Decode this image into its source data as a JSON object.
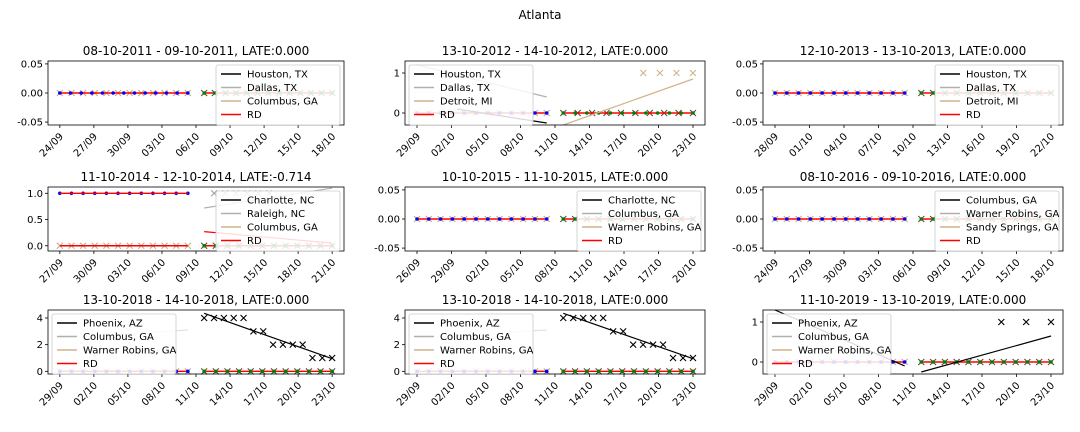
{
  "figure_title": "Atlanta",
  "chart_data": [
    {
      "type": "line",
      "title": "08-10-2011 - 09-10-2011, LATE:0.000",
      "xticks": [
        "24/09",
        "27/09",
        "30/09",
        "03/10",
        "06/10",
        "09/10",
        "12/10",
        "15/10",
        "18/10"
      ],
      "yticks": [
        "0.05",
        "0.00",
        "-0.05"
      ],
      "ylim": [
        -0.055,
        0.055
      ],
      "legend": [
        "Houston, TX",
        "Dallas, TX",
        "Columbus, GA",
        "RD"
      ],
      "pre_x_markers": 12,
      "post_x_markers": 13,
      "pre_points": 13,
      "post_points": 13,
      "x_y": [],
      "fit": {
        "y0": 0,
        "y1": 0
      }
    },
    {
      "type": "line",
      "title": "13-10-2012 - 14-10-2012, LATE:0.000",
      "xticks": [
        "29/09",
        "02/10",
        "05/10",
        "08/10",
        "11/10",
        "14/10",
        "17/10",
        "20/10",
        "23/10"
      ],
      "yticks": [
        "1",
        "0"
      ],
      "ylim": [
        -0.3,
        1.3
      ],
      "legend": [
        "Houston, TX",
        "Dallas, TX",
        "Detroit, MI",
        "RD"
      ],
      "pre_x_markers": 12,
      "post_x_markers": 10,
      "pre_points": 12,
      "post_points": 12,
      "x_y": [
        1,
        1,
        1,
        1
      ],
      "fit": {
        "y0": -0.3,
        "y1": 0.85
      }
    },
    {
      "type": "line",
      "title": "12-10-2013 - 13-10-2013, LATE:0.000",
      "xticks": [
        "28/09",
        "01/10",
        "04/10",
        "07/10",
        "10/10",
        "13/10",
        "16/10",
        "19/10",
        "22/10"
      ],
      "yticks": [
        "0.05",
        "0.00",
        "-0.05"
      ],
      "ylim": [
        -0.055,
        0.055
      ],
      "legend": [
        "Houston, TX",
        "Dallas, TX",
        "Detroit, MI",
        "RD"
      ],
      "pre_x_markers": 12,
      "post_x_markers": 12,
      "pre_points": 12,
      "post_points": 12,
      "x_y": [],
      "fit": {
        "y0": 0,
        "y1": 0
      }
    },
    {
      "type": "line",
      "title": "11-10-2014 - 12-10-2014, LATE:-0.714",
      "xticks": [
        "27/09",
        "30/09",
        "03/10",
        "06/10",
        "09/10",
        "12/10",
        "15/10",
        "18/10",
        "21/10"
      ],
      "yticks": [
        "1.0",
        "0.5",
        "0.0"
      ],
      "ylim": [
        -0.1,
        1.12
      ],
      "legend": [
        "Charlotte, NC",
        "Raleigh, NC",
        "Columbus, GA",
        "RD"
      ],
      "pre_x_markers": 12,
      "post_x_markers": 12,
      "pre_points": 12,
      "post_points": 12,
      "x_y": [
        1,
        1,
        1,
        1
      ],
      "fit": {
        "y0": 0.27,
        "y1": 0.05
      }
    },
    {
      "type": "line",
      "title": "10-10-2015 - 11-10-2015, LATE:0.000",
      "xticks": [
        "26/09",
        "29/09",
        "02/10",
        "05/10",
        "08/10",
        "11/10",
        "14/10",
        "17/10",
        "20/10"
      ],
      "yticks": [
        "0.05",
        "0.00",
        "-0.05"
      ],
      "ylim": [
        -0.055,
        0.055
      ],
      "legend": [
        "Charlotte, NC",
        "Columbus, GA",
        "Warner Robins, GA",
        "RD"
      ],
      "pre_x_markers": 12,
      "post_x_markers": 12,
      "pre_points": 12,
      "post_points": 12,
      "x_y": [],
      "fit": {
        "y0": 0,
        "y1": 0
      }
    },
    {
      "type": "line",
      "title": "08-10-2016 - 09-10-2016, LATE:0.000",
      "xticks": [
        "24/09",
        "27/09",
        "30/09",
        "03/10",
        "06/10",
        "09/10",
        "12/10",
        "15/10",
        "18/10"
      ],
      "yticks": [
        "0.05",
        "0.00",
        "-0.05"
      ],
      "ylim": [
        -0.055,
        0.055
      ],
      "legend": [
        "Columbus, GA",
        "Warner Robins, GA",
        "Sandy Springs, GA",
        "RD"
      ],
      "pre_x_markers": 12,
      "post_x_markers": 12,
      "pre_points": 12,
      "post_points": 12,
      "x_y": [],
      "fit": {
        "y0": 0,
        "y1": 0
      }
    },
    {
      "type": "line",
      "title": "13-10-2018 - 14-10-2018, LATE:0.000",
      "xticks": [
        "29/09",
        "02/10",
        "05/10",
        "08/10",
        "11/10",
        "14/10",
        "17/10",
        "20/10",
        "23/10"
      ],
      "yticks": [
        "4",
        "2",
        "0"
      ],
      "ylim": [
        -0.2,
        4.6
      ],
      "legend": [
        "Phoenix, AZ",
        "Columbus, GA",
        "Warner Robins, GA",
        "RD"
      ],
      "pre_x_markers": 12,
      "post_x_markers": 12,
      "pre_points": 12,
      "post_points": 12,
      "x_y": [
        4,
        4,
        4,
        4,
        4,
        3,
        3,
        2,
        2,
        2,
        2,
        1,
        1,
        1
      ],
      "fit": {
        "y0": 4.35,
        "y1": 0.95
      }
    },
    {
      "type": "line",
      "title": "13-10-2018 - 14-10-2018, LATE:0.000",
      "xticks": [
        "29/09",
        "02/10",
        "05/10",
        "08/10",
        "11/10",
        "14/10",
        "17/10",
        "20/10",
        "23/10"
      ],
      "yticks": [
        "4",
        "2",
        "0"
      ],
      "ylim": [
        -0.2,
        4.6
      ],
      "legend": [
        "Phoenix, AZ",
        "Columbus, GA",
        "Warner Robins, GA",
        "RD"
      ],
      "pre_x_markers": 12,
      "post_x_markers": 12,
      "pre_points": 12,
      "post_points": 12,
      "x_y": [
        4,
        4,
        4,
        4,
        4,
        3,
        3,
        2,
        2,
        2,
        2,
        1,
        1,
        1
      ],
      "fit": {
        "y0": 4.35,
        "y1": 0.95
      }
    },
    {
      "type": "line",
      "title": "11-10-2019 - 13-10-2019, LATE:0.000",
      "xticks": [
        "29/09",
        "02/10",
        "05/10",
        "08/10",
        "11/10",
        "14/10",
        "17/10",
        "20/10",
        "23/10"
      ],
      "yticks": [
        "1",
        "0"
      ],
      "ylim": [
        -0.3,
        1.3
      ],
      "legend": [
        "Phoenix, AZ",
        "Columbus, GA",
        "Warner Robins, GA",
        "RD"
      ],
      "pre_x_markers": 12,
      "post_x_markers": 12,
      "pre_points": 12,
      "post_points": 12,
      "x_y": [
        1,
        1,
        1
      ],
      "fit": {
        "y0": -0.25,
        "y1": 0.65
      }
    }
  ],
  "colors": {
    "series1": "#000000",
    "series2": "#b0b0b0",
    "series3": "#d2b48c",
    "rd": "#ff0000",
    "pre_points": "#0000ff",
    "post_points": "#008000"
  }
}
